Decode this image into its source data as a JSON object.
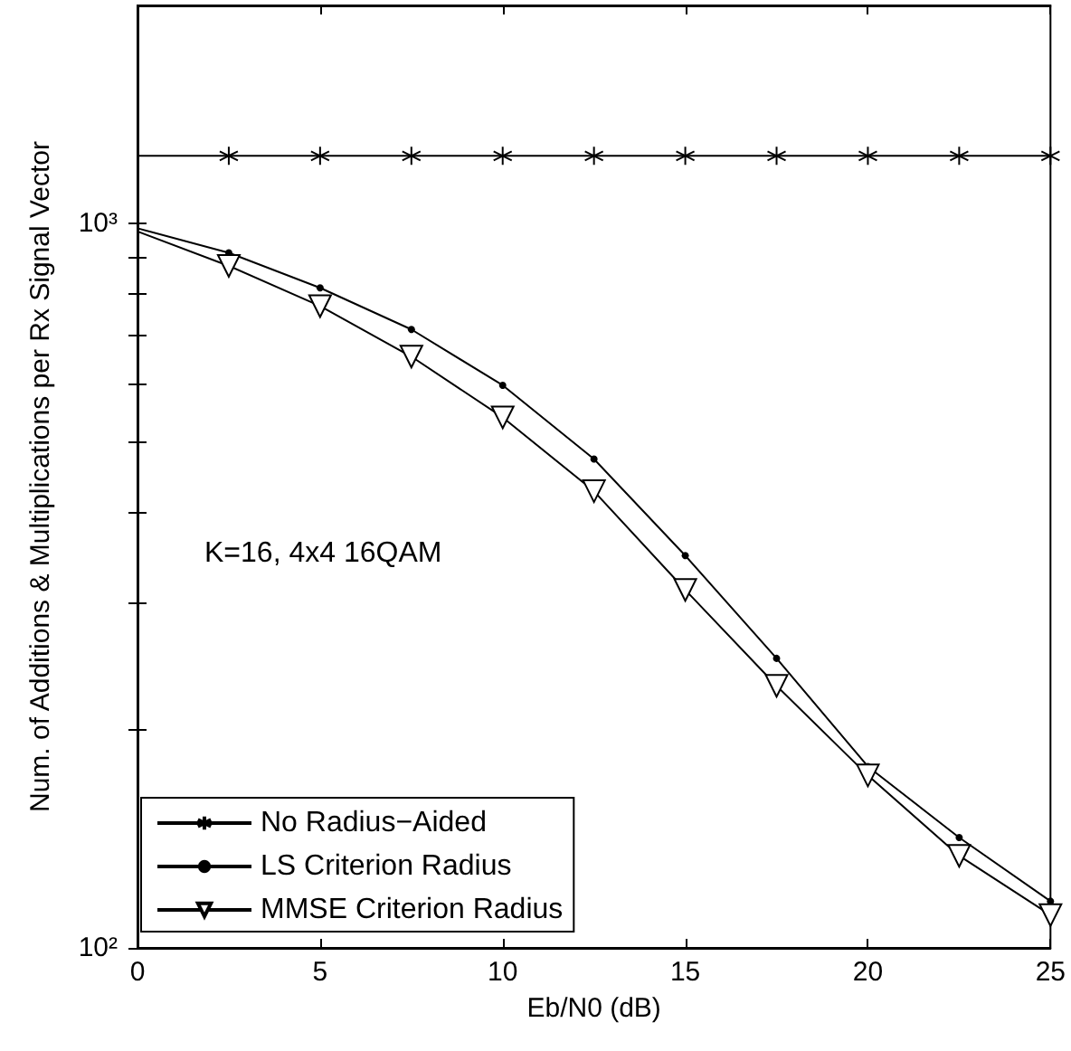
{
  "chart_data": {
    "type": "line",
    "xlabel": "Eb/N0 (dB)",
    "ylabel": "Num. of Additions & Multiplications per Rx Signal Vector",
    "x": [
      0,
      2.5,
      5,
      7.5,
      10,
      12.5,
      15,
      17.5,
      20,
      22.5,
      25
    ],
    "series": [
      {
        "name": "No Radius−Aided",
        "color": "#000000",
        "marker": "cross",
        "values": [
          1240,
          1240,
          1240,
          1240,
          1240,
          1240,
          1240,
          1240,
          1240,
          1240,
          1240
        ]
      },
      {
        "name": "LS Criterion Radius",
        "color": "#000000",
        "marker": "circle",
        "values": [
          985,
          911,
          815,
          714,
          598,
          473,
          348,
          251,
          178,
          142,
          116
        ]
      },
      {
        "name": "MMSE Criterion Radius",
        "color": "#000000",
        "marker": "triangle",
        "values": [
          975,
          874,
          769,
          655,
          540,
          427,
          312,
          230,
          173,
          134,
          111
        ]
      }
    ],
    "log": "y",
    "xlim": [
      0,
      25
    ],
    "xticks": [
      0,
      5,
      10,
      15,
      20,
      25
    ],
    "ylim": [
      100,
      2000
    ],
    "yticks": [
      {
        "value": 100,
        "label": "10²"
      },
      {
        "value": 200,
        "label": null
      },
      {
        "value": 300,
        "label": null
      },
      {
        "value": 400,
        "label": null
      },
      {
        "value": 500,
        "label": null
      },
      {
        "value": 600,
        "label": null
      },
      {
        "value": 700,
        "label": null
      },
      {
        "value": 800,
        "label": null
      },
      {
        "value": 900,
        "label": null
      },
      {
        "value": 1000,
        "label": "10³"
      }
    ],
    "grid": false,
    "legend": "bottom left",
    "line_style": "solid",
    "annotations": [
      "K=16, 4x4 16QAM"
    ]
  }
}
